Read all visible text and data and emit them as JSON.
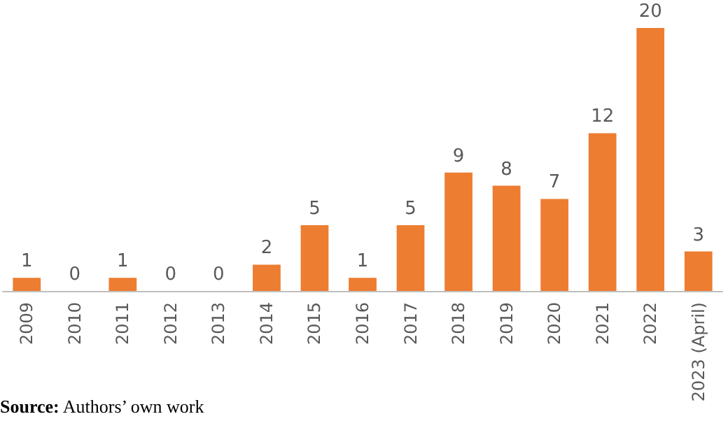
{
  "chart_data": {
    "type": "bar",
    "categories": [
      "2009",
      "2010",
      "2011",
      "2012",
      "2013",
      "2014",
      "2015",
      "2016",
      "2017",
      "2018",
      "2019",
      "2020",
      "2021",
      "2022",
      "2023 (April)"
    ],
    "values": [
      1,
      0,
      1,
      0,
      0,
      2,
      5,
      1,
      5,
      9,
      8,
      7,
      12,
      20,
      3
    ],
    "color": "#ed7d31",
    "data_labels": true,
    "annotations": [
      "Source: Authors’ own work"
    ]
  }
}
